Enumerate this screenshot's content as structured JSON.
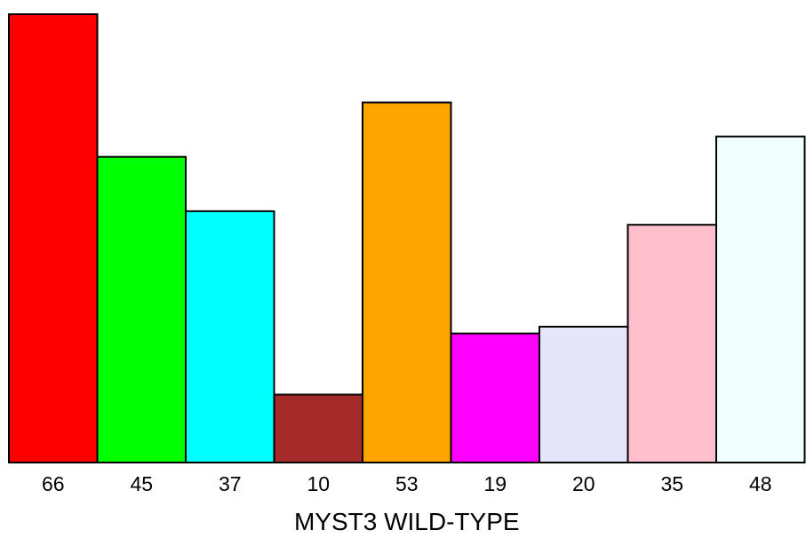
{
  "chart_data": {
    "type": "bar",
    "categories": [
      "66",
      "45",
      "37",
      "10",
      "53",
      "19",
      "20",
      "35",
      "48"
    ],
    "values": [
      66,
      45,
      37,
      10,
      53,
      19,
      20,
      35,
      48
    ],
    "colors": [
      "#ff0000",
      "#00ff00",
      "#00ffff",
      "#a52a2a",
      "#ffa500",
      "#ff00ff",
      "#e6e6fa",
      "#ffc0cb",
      "#f0ffff"
    ],
    "title": "",
    "xlabel": "MYST3 WILD-TYPE",
    "ylabel": "",
    "ylim": [
      0,
      66
    ],
    "grid": false,
    "legend": "none"
  }
}
